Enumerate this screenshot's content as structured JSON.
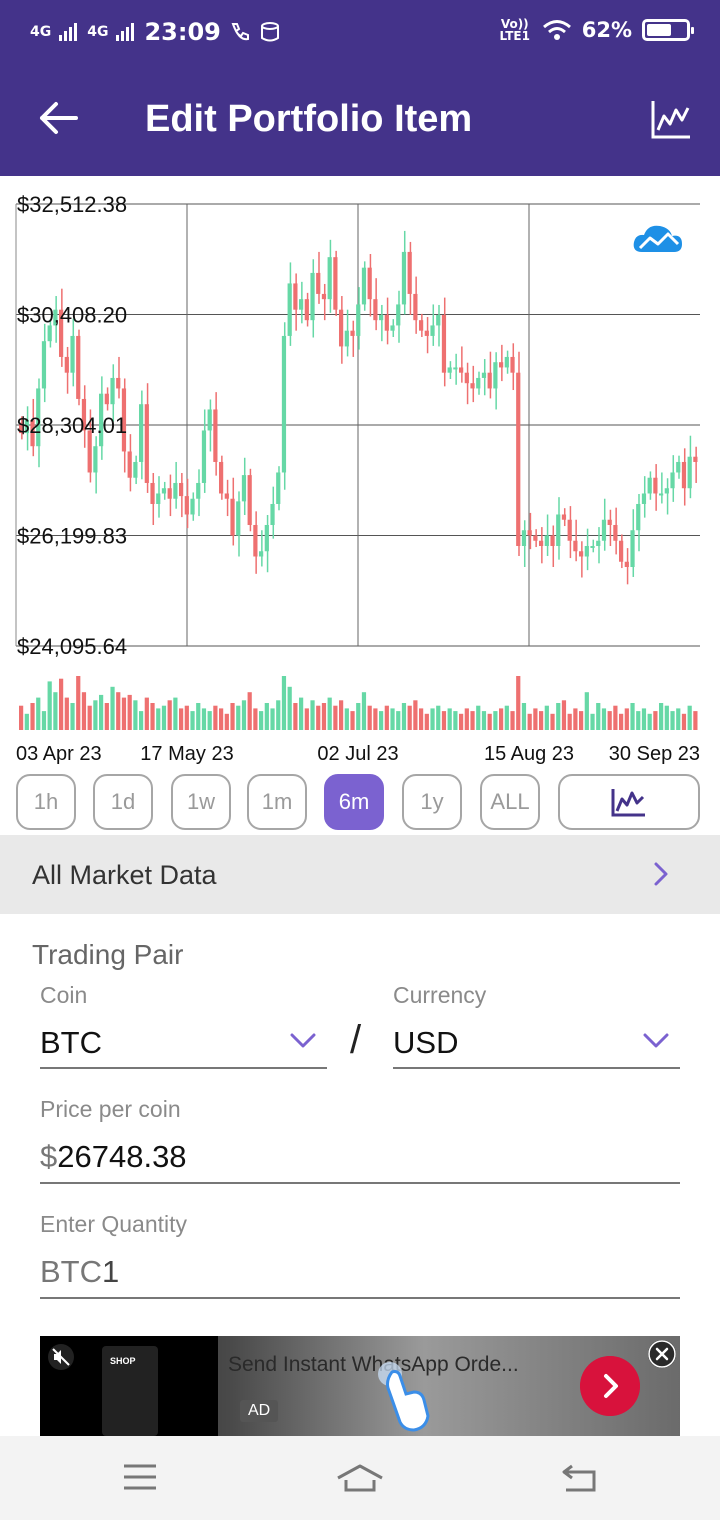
{
  "status_bar": {
    "network_1": "4G",
    "network_2": "4G",
    "time": "23:09",
    "volte": "Vo)) LTE1",
    "battery": "62%",
    "battery_level": 0.62
  },
  "app_bar": {
    "title": "Edit Portfolio Item",
    "back_icon": "arrow-left-icon",
    "chart_icon": "chart-icon"
  },
  "chart_data": {
    "type": "candlestick",
    "y_tick_labels": [
      "$32,512.38",
      "$30,408.20",
      "$28,304.01",
      "$26,199.83",
      "$24,095.64"
    ],
    "ylim": [
      24095.64,
      32512.38
    ],
    "x_tick_labels": [
      "03 Apr 23",
      "17 May 23",
      "02 Jul 23",
      "15 Aug 23",
      "30 Sep 23"
    ],
    "colors": {
      "up": "#66d8a6",
      "down": "#ee7070"
    },
    "grid": true,
    "closes": [
      28150,
      28400,
      27900,
      29000,
      29900,
      30200,
      30500,
      29600,
      29300,
      30000,
      28800,
      28200,
      27400,
      27900,
      28900,
      28700,
      29200,
      29000,
      27800,
      27300,
      27600,
      28700,
      27200,
      26800,
      27000,
      27100,
      26900,
      27200,
      26950,
      26600,
      26900,
      27200,
      28200,
      28600,
      27600,
      27000,
      26900,
      26200,
      26850,
      27350,
      26400,
      25800,
      25900,
      26400,
      26800,
      27400,
      30000,
      31000,
      30500,
      30700,
      30300,
      31200,
      30800,
      30700,
      31500,
      30500,
      29800,
      30100,
      30000,
      30600,
      31300,
      30700,
      30300,
      30400,
      30100,
      30200,
      30600,
      31600,
      30800,
      30300,
      30100,
      30000,
      30200,
      30400,
      29300,
      29400,
      29400,
      29300,
      29100,
      29000,
      29200,
      29300,
      29000,
      29500,
      29400,
      29600,
      29300,
      26000,
      26300,
      26200,
      26100,
      26000,
      26200,
      26000,
      26600,
      26500,
      26100,
      25900,
      25800,
      26000,
      26000,
      26100,
      26500,
      26400,
      26100,
      25700,
      25600,
      26300,
      26800,
      27000,
      27300,
      27000,
      27000,
      27100,
      27400,
      27600,
      27100,
      27700,
      27600
    ]
  },
  "volume_bars": [
    0.45,
    0.3,
    0.5,
    0.6,
    0.35,
    0.9,
    0.7,
    0.95,
    0.6,
    0.5,
    1.0,
    0.7,
    0.45,
    0.55,
    0.65,
    0.5,
    0.8,
    0.7,
    0.6,
    0.65,
    0.55,
    0.35,
    0.6,
    0.5,
    0.4,
    0.45,
    0.55,
    0.6,
    0.4,
    0.45,
    0.35,
    0.5,
    0.4,
    0.35,
    0.45,
    0.4,
    0.3,
    0.5,
    0.45,
    0.55,
    0.7,
    0.4,
    0.35,
    0.5,
    0.4,
    0.55,
    1.0,
    0.8,
    0.5,
    0.6,
    0.4,
    0.55,
    0.45,
    0.5,
    0.6,
    0.45,
    0.55,
    0.4,
    0.35,
    0.5,
    0.7,
    0.45,
    0.4,
    0.35,
    0.45,
    0.4,
    0.35,
    0.5,
    0.45,
    0.55,
    0.4,
    0.3,
    0.4,
    0.45,
    0.35,
    0.4,
    0.35,
    0.3,
    0.4,
    0.35,
    0.45,
    0.35,
    0.3,
    0.35,
    0.4,
    0.45,
    0.35,
    1.0,
    0.5,
    0.3,
    0.4,
    0.35,
    0.45,
    0.3,
    0.5,
    0.55,
    0.3,
    0.4,
    0.35,
    0.7,
    0.3,
    0.5,
    0.4,
    0.35,
    0.45,
    0.3,
    0.4,
    0.5,
    0.35,
    0.4,
    0.3,
    0.35,
    0.5,
    0.45,
    0.35,
    0.4,
    0.3,
    0.45,
    0.35
  ],
  "watermark_icon": "cloud-chart-icon",
  "ranges": {
    "items": [
      "1h",
      "1d",
      "1w",
      "1m",
      "6m",
      "1y",
      "ALL"
    ],
    "active": "6m",
    "chart_style_icon": "line-chart-icon"
  },
  "market": {
    "label": "All Market Data",
    "chevron_icon": "chevron-right-icon"
  },
  "form": {
    "section_title": "Trading Pair",
    "coin_label": "Coin",
    "coin_value": "BTC",
    "slash": "/",
    "currency_label": "Currency",
    "currency_value": "USD",
    "price_label": "Price per coin",
    "price_prefix": "$",
    "price_value": "26748.38",
    "quantity_label": "Enter Quantity",
    "quantity_prefix": "BTC",
    "quantity_value": "1"
  },
  "ad": {
    "text": "Send Instant WhatsApp Orde...",
    "badge": "AD",
    "thumb_label": "SHOP"
  },
  "nav_bar": {
    "menu_icon": "menu-icon",
    "home_icon": "home-icon",
    "back_icon": "back-icon"
  },
  "accent_color": "#7b62d0",
  "brand_color": "#44338a"
}
